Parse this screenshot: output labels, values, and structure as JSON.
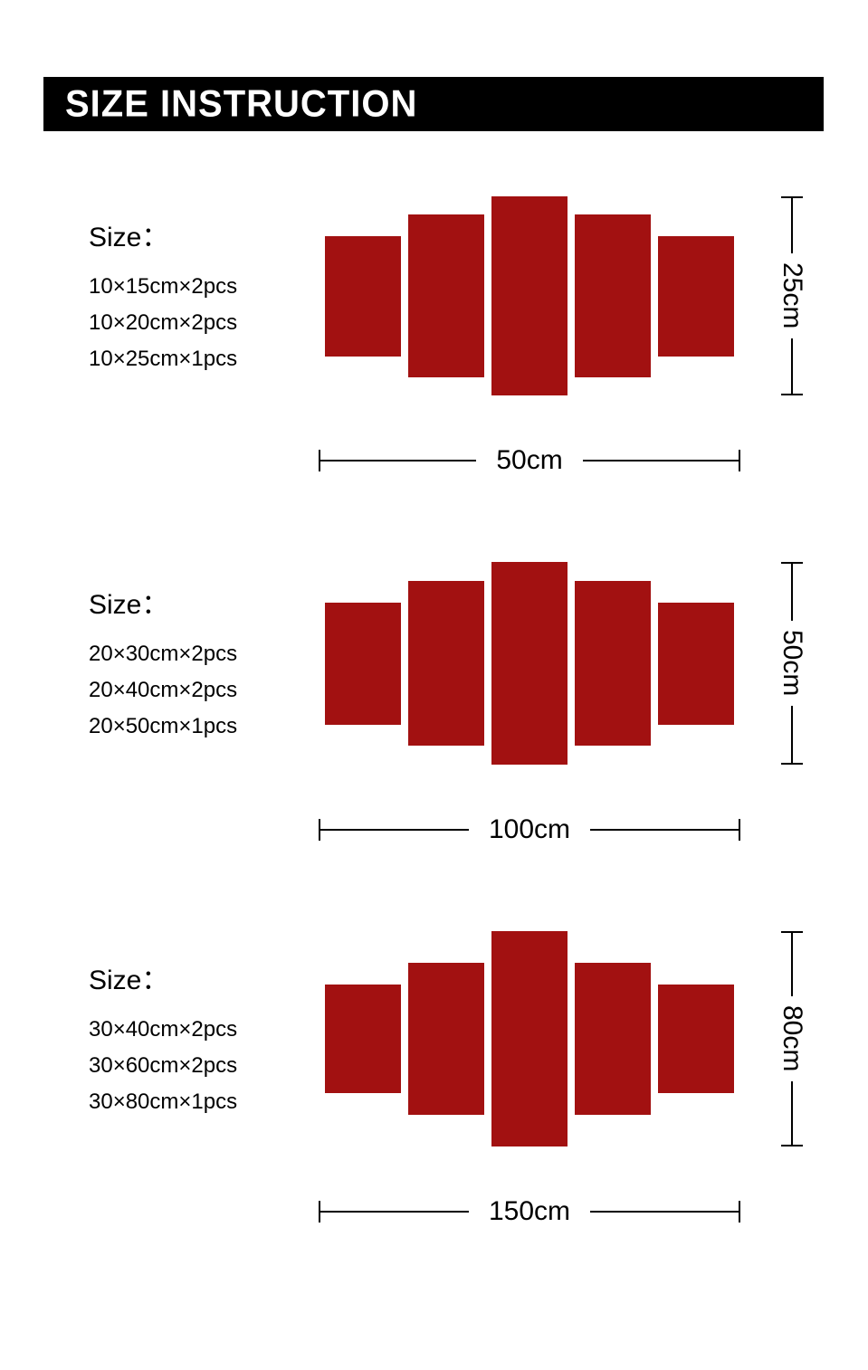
{
  "header": {
    "title": "SIZE INSTRUCTION"
  },
  "colors": {
    "panel": "#a21111",
    "header-bg": "#000000",
    "header-text": "#ffffff",
    "ink": "#000000",
    "page-bg": "#ffffff"
  },
  "sections": [
    {
      "size_label": "Size：",
      "items": [
        "10×15cm×2pcs",
        "10×20cm×2pcs",
        "10×25cm×1pcs"
      ],
      "height_label": "25cm",
      "width_label": "50cm"
    },
    {
      "size_label": "Size：",
      "items": [
        "20×30cm×2pcs",
        "20×40cm×2pcs",
        "20×50cm×1pcs"
      ],
      "height_label": "50cm",
      "width_label": "100cm"
    },
    {
      "size_label": "Size：",
      "items": [
        "30×40cm×2pcs",
        "30×60cm×2pcs",
        "30×80cm×1pcs"
      ],
      "height_label": "80cm",
      "width_label": "150cm"
    }
  ]
}
